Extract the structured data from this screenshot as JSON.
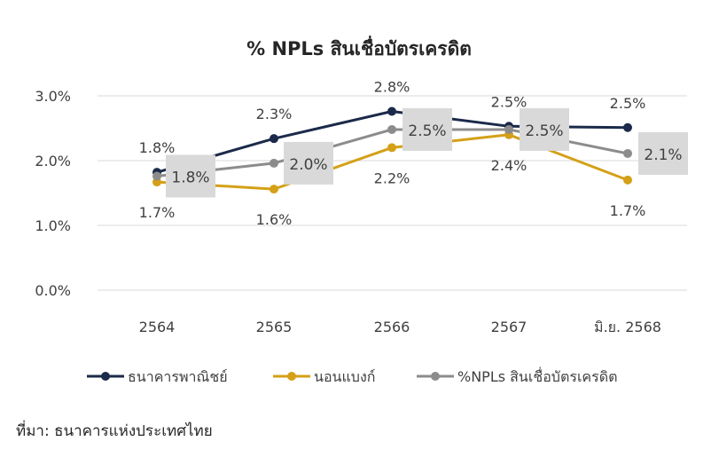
{
  "chart_data": {
    "type": "line",
    "title": "% NPLs สินเชื่อบัตรเครดิต",
    "categories": [
      "2564",
      "2565",
      "2566",
      "2567",
      "มิ.ย. 2568"
    ],
    "ylim": [
      0,
      3
    ],
    "yticks": [
      "0.0%",
      "1.0%",
      "2.0%",
      "3.0%"
    ],
    "grid": true,
    "legend_position": "bottom",
    "series": [
      {
        "name": "ธนาคารพาณิชย์",
        "color": "#1b2a4a",
        "values": [
          1.82,
          2.34,
          2.76,
          2.53,
          2.51
        ],
        "labels": [
          "1.8%",
          "2.3%",
          "2.8%",
          "2.5%",
          "2.5%"
        ],
        "label_style": "above"
      },
      {
        "name": "นอนแบงก์",
        "color": "#d4a017",
        "values": [
          1.67,
          1.56,
          2.2,
          2.4,
          1.7
        ],
        "labels": [
          "1.7%",
          "1.6%",
          "2.2%",
          "2.4%",
          "1.7%"
        ],
        "label_style": "below"
      },
      {
        "name": "%NPLs สินเชื่อบัตรเครดิต",
        "color": "#8c8c8c",
        "values": [
          1.76,
          1.96,
          2.48,
          2.48,
          2.11
        ],
        "labels": [
          "1.8%",
          "2.0%",
          "2.5%",
          "2.5%",
          "2.1%"
        ],
        "label_style": "box"
      }
    ]
  },
  "source": "ที่มา: ธนาคารแห่งประเทศไทย"
}
